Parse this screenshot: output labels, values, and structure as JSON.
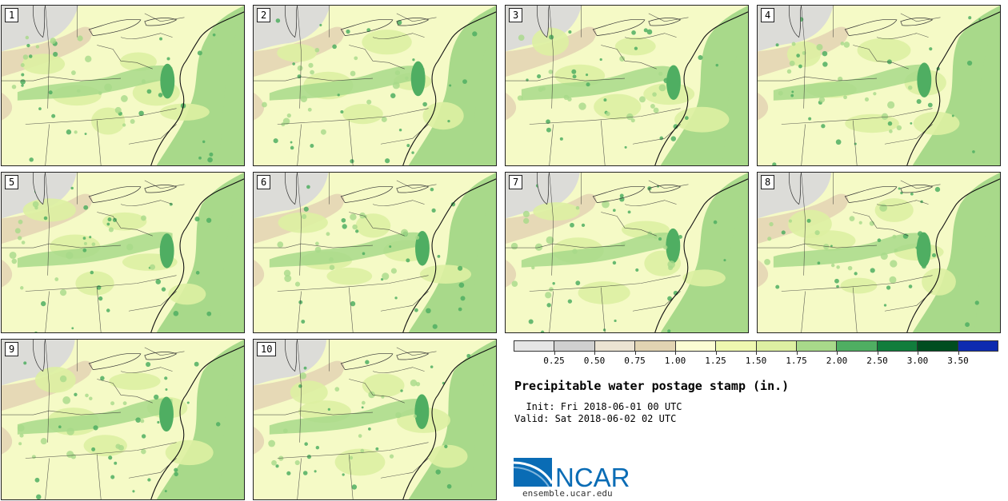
{
  "panels": [
    {
      "label": "1"
    },
    {
      "label": "2"
    },
    {
      "label": "3"
    },
    {
      "label": "4"
    },
    {
      "label": "5"
    },
    {
      "label": "6"
    },
    {
      "label": "7"
    },
    {
      "label": "8"
    },
    {
      "label": "9"
    },
    {
      "label": "10"
    }
  ],
  "legend": {
    "colors": [
      "#e6e6e6",
      "#d0d0d0",
      "#ebe3d2",
      "#e2d4b2",
      "#fcfdd4",
      "#eef8b0",
      "#ddf0a2",
      "#a8d98a",
      "#4fae62",
      "#117d3c",
      "#004d20",
      "#0d2bb0"
    ],
    "ticks": [
      "0.25",
      "0.50",
      "0.75",
      "1.00",
      "1.25",
      "1.50",
      "1.75",
      "2.00",
      "2.50",
      "3.00",
      "3.50"
    ]
  },
  "title": "Precipitable water postage stamp (in.)",
  "init_text": "  Init: Fri 2018-06-01 00 UTC",
  "valid_text": "Valid: Sat 2018-06-02 02 UTC",
  "logo": {
    "text": "NCAR",
    "url": "ensemble.ucar.edu",
    "brand_color": "#0a6cb5"
  },
  "fill_levels": {
    "land_base": "#f5fac6",
    "ocean_base": "#a8d98a",
    "dry_grey": "#dcdcd8",
    "dry_tan": "#e6d9b6",
    "light_green": "#ddf0a2",
    "mid_green": "#a8d98a",
    "dark_green": "#4fae62"
  }
}
